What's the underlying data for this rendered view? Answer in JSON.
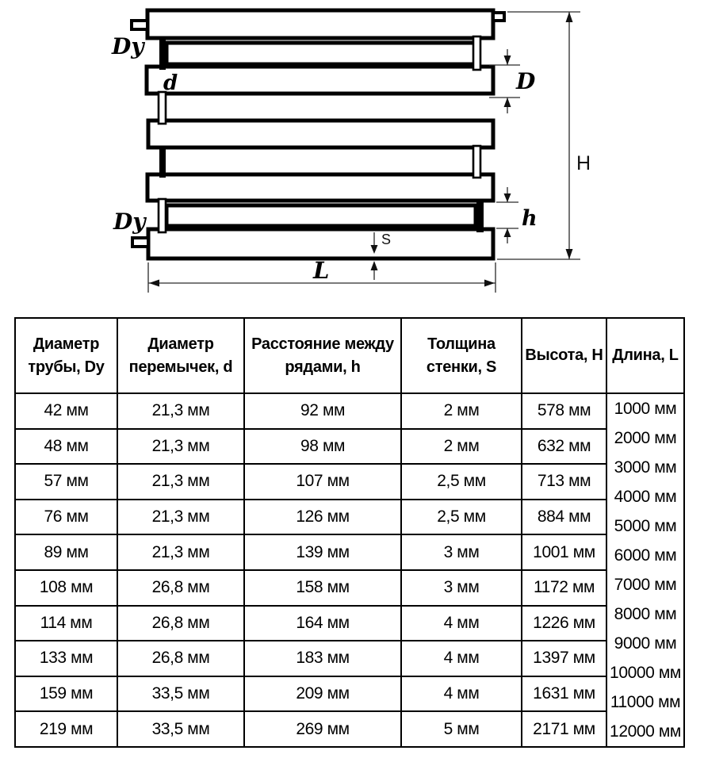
{
  "diagram": {
    "labels": {
      "dy_top": "Dy",
      "dy_bottom": "Dy",
      "d": "d",
      "D": "D",
      "h": "h",
      "H": "H",
      "S": "S",
      "L": "L"
    }
  },
  "table": {
    "headers": [
      "Диаметр трубы, Dy",
      "Диаметр перемычек, d",
      "Расстояние между рядами, h",
      "Толщина стенки, S",
      "Высота, Н",
      "Длина, L"
    ],
    "rows": [
      [
        "42 мм",
        "21,3 мм",
        "92 мм",
        "2 мм",
        "578 мм"
      ],
      [
        "48 мм",
        "21,3 мм",
        "98 мм",
        "2 мм",
        "632 мм"
      ],
      [
        "57 мм",
        "21,3 мм",
        "107 мм",
        "2,5 мм",
        "713 мм"
      ],
      [
        "76 мм",
        "21,3 мм",
        "126 мм",
        "2,5 мм",
        "884 мм"
      ],
      [
        "89 мм",
        "21,3 мм",
        "139 мм",
        "3 мм",
        "1001 мм"
      ],
      [
        "108 мм",
        "26,8 мм",
        "158 мм",
        "3 мм",
        "1172 мм"
      ],
      [
        "114 мм",
        "26,8 мм",
        "164 мм",
        "4 мм",
        "1226 мм"
      ],
      [
        "133 мм",
        "26,8 мм",
        "183 мм",
        "4 мм",
        "1397 мм"
      ],
      [
        "159 мм",
        "33,5 мм",
        "209 мм",
        "4 мм",
        "1631 мм"
      ],
      [
        "219 мм",
        "33,5 мм",
        "269 мм",
        "5 мм",
        "2171 мм"
      ]
    ],
    "lengths": [
      "1000 мм",
      "2000 мм",
      "3000 мм",
      "4000 мм",
      "5000 мм",
      "6000 мм",
      "7000 мм",
      "8000 мм",
      "9000 мм",
      "10000 мм",
      "11000 мм",
      "12000 мм"
    ]
  }
}
